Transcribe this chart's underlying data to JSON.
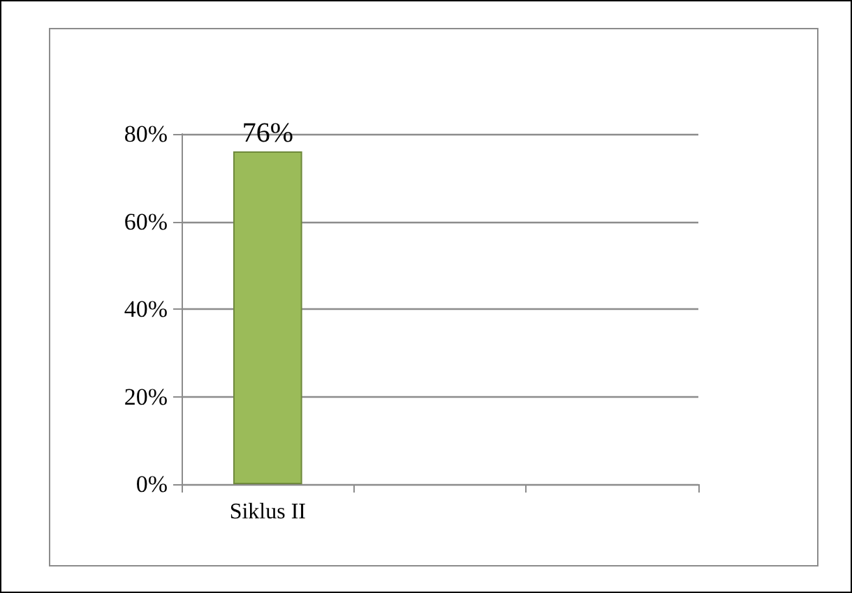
{
  "chart_data": {
    "type": "bar",
    "categories": [
      "Siklus II",
      null,
      null
    ],
    "values": [
      76,
      null,
      null
    ],
    "color": "#9bbb59",
    "value_labels": [
      "76%",
      null,
      null
    ],
    "ylim": [
      0,
      80
    ],
    "yticks": [
      {
        "value": 0,
        "label": "0%"
      },
      {
        "value": 20,
        "label": "20%"
      },
      {
        "value": 40,
        "label": "40%"
      },
      {
        "value": 60,
        "label": "60%"
      },
      {
        "value": 80,
        "label": "80%"
      }
    ],
    "grid": "y"
  }
}
